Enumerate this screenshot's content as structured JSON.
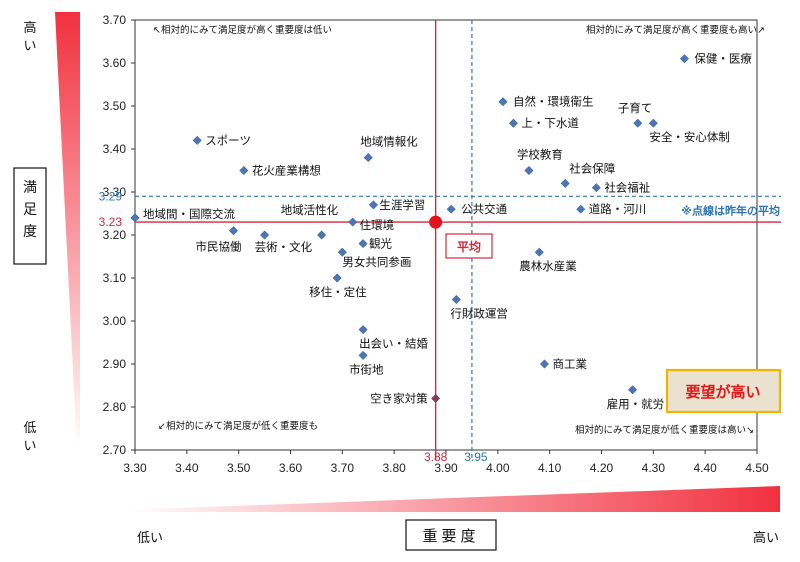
{
  "chart_data": {
    "type": "scatter",
    "xlabel": "重要度",
    "ylabel": "満足度",
    "xlim": [
      3.3,
      4.5
    ],
    "ylim": [
      2.7,
      3.7
    ],
    "xticks": [
      "3.30",
      "3.40",
      "3.50",
      "3.60",
      "3.70",
      "3.80",
      "3.90",
      "4.00",
      "4.10",
      "4.20",
      "4.30",
      "4.40",
      "4.50"
    ],
    "yticks": [
      "2.70",
      "2.80",
      "2.90",
      "3.00",
      "3.10",
      "3.20",
      "3.30",
      "3.40",
      "3.50",
      "3.60",
      "3.70"
    ],
    "x_low": "低い",
    "x_high": "高い",
    "y_high": "高い",
    "y_low": "低い",
    "average": {
      "x": 3.88,
      "y": 3.23,
      "label": "平均",
      "x_label": "3.88",
      "y_label": "3.23"
    },
    "last_year_average": {
      "x": 3.95,
      "y": 3.29,
      "x_label": "3.95",
      "y_label": "3.29",
      "note": "※点線は昨年の平均"
    },
    "quadrant_notes": {
      "top_left": "↖相対的にみて満足度が高く重要度は低い",
      "top_right": "相対的にみて満足度が高く重要度も高い↗",
      "bottom_left": "↙相対的にみて満足度が低く重要度も",
      "bottom_right": "相対的にみて満足度が低く重要度は高い↘"
    },
    "highlight": "要望が高い",
    "points": [
      {
        "label": "保健・医療",
        "x": 4.36,
        "y": 3.61
      },
      {
        "label": "自然・環境衛生",
        "x": 4.01,
        "y": 3.51
      },
      {
        "label": "子育て",
        "x": 4.27,
        "y": 3.46
      },
      {
        "label": "上・下水道",
        "x": 4.03,
        "y": 3.46
      },
      {
        "label": "安全・安心体制",
        "x": 4.3,
        "y": 3.46
      },
      {
        "label": "スポーツ",
        "x": 3.42,
        "y": 3.42
      },
      {
        "label": "地域情報化",
        "x": 3.75,
        "y": 3.38
      },
      {
        "label": "花火産業構想",
        "x": 3.51,
        "y": 3.35
      },
      {
        "label": "学校教育",
        "x": 4.06,
        "y": 3.35
      },
      {
        "label": "社会保障",
        "x": 4.13,
        "y": 3.32
      },
      {
        "label": "社会福祉",
        "x": 4.19,
        "y": 3.31
      },
      {
        "label": "生涯学習",
        "x": 3.76,
        "y": 3.27
      },
      {
        "label": "公共交通",
        "x": 3.91,
        "y": 3.26
      },
      {
        "label": "道路・河川",
        "x": 4.16,
        "y": 3.26
      },
      {
        "label": "地域間・国際交流",
        "x": 3.3,
        "y": 3.24
      },
      {
        "label": "地域活性化",
        "x": 3.72,
        "y": 3.23
      },
      {
        "label": "市民協働",
        "x": 3.49,
        "y": 3.21
      },
      {
        "label": "芸術・文化",
        "x": 3.55,
        "y": 3.2
      },
      {
        "label": "住環境",
        "x": 3.66,
        "y": 3.2
      },
      {
        "label": "観光",
        "x": 3.74,
        "y": 3.18
      },
      {
        "label": "男女共同参画",
        "x": 3.7,
        "y": 3.16
      },
      {
        "label": "農林水産業",
        "x": 4.08,
        "y": 3.16
      },
      {
        "label": "移住・定住",
        "x": 3.69,
        "y": 3.1
      },
      {
        "label": "行財政運営",
        "x": 3.92,
        "y": 3.05
      },
      {
        "label": "出会い・結婚",
        "x": 3.74,
        "y": 2.98
      },
      {
        "label": "市街地",
        "x": 3.74,
        "y": 2.92
      },
      {
        "label": "商工業",
        "x": 4.09,
        "y": 2.9
      },
      {
        "label": "雇用・就労",
        "x": 4.26,
        "y": 2.84
      },
      {
        "label": "空き家対策",
        "x": 3.88,
        "y": 2.82
      }
    ]
  },
  "colors": {
    "point": "#4a76b8",
    "average_line": "#d6283a",
    "last_year_line": "#2e74b5",
    "highlight_bg": "#eae2cf",
    "highlight_border": "#f0b400",
    "highlight_text": "#e01818"
  }
}
